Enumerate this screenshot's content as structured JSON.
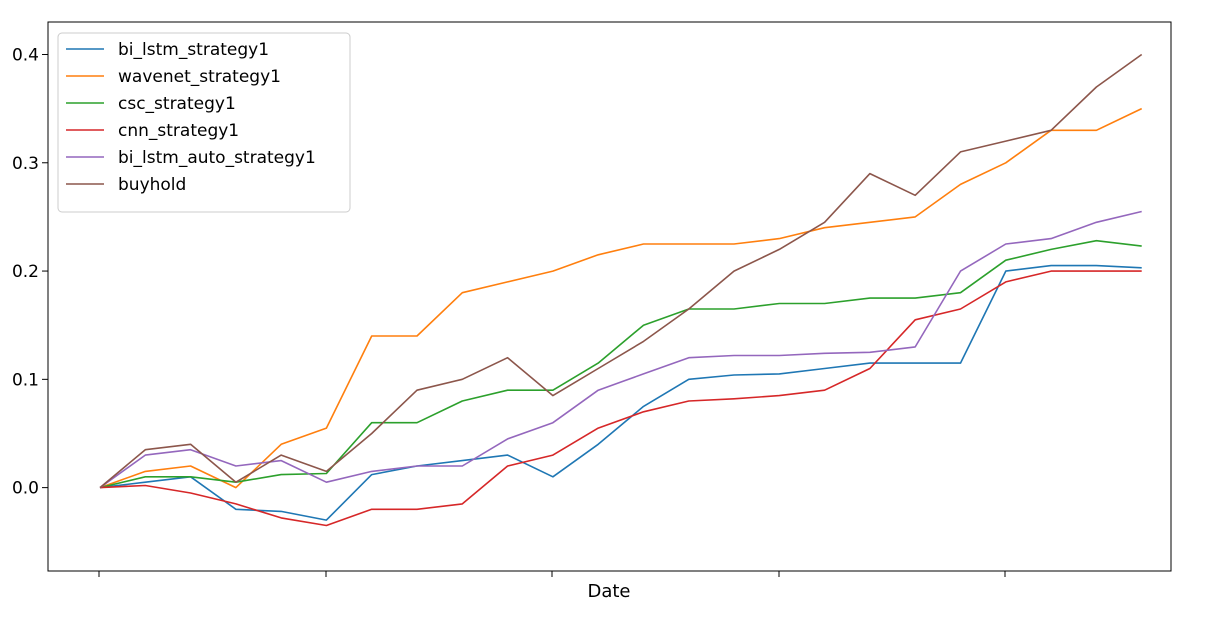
{
  "chart_data": {
    "type": "line",
    "title": "",
    "xlabel": "Date",
    "ylabel": "",
    "x_tick_labels": [
      "",
      "",
      "",
      "",
      ""
    ],
    "x": [
      0,
      20,
      40,
      60,
      80,
      100,
      120,
      140,
      160,
      180,
      200,
      220,
      240,
      260,
      280,
      300,
      320,
      340,
      360,
      380,
      400,
      420,
      440,
      460
    ],
    "xlim": [
      -22.96,
      472.96
    ],
    "ylim": [
      -0.077,
      0.43
    ],
    "yticks": [
      0.0,
      0.1,
      0.2,
      0.3,
      0.4
    ],
    "ytick_labels": [
      "0.0",
      "0.1",
      "0.2",
      "0.3",
      "0.4"
    ],
    "grid": false,
    "legend_position": "top-left",
    "series": [
      {
        "name": "bi_lstm_strategy1",
        "color": "#1f77b4",
        "values": [
          0.0,
          0.005,
          0.01,
          -0.02,
          -0.022,
          -0.03,
          0.012,
          0.02,
          0.025,
          0.03,
          0.01,
          0.04,
          0.075,
          0.1,
          0.104,
          0.105,
          0.11,
          0.115,
          0.115,
          0.115,
          0.2,
          0.205,
          0.205,
          0.203
        ]
      },
      {
        "name": "wavenet_strategy1",
        "color": "#ff7f0e",
        "values": [
          0.0,
          0.015,
          0.02,
          0.0,
          0.04,
          0.055,
          0.14,
          0.14,
          0.18,
          0.19,
          0.2,
          0.215,
          0.225,
          0.225,
          0.225,
          0.23,
          0.24,
          0.245,
          0.25,
          0.28,
          0.3,
          0.33,
          0.33,
          0.35
        ]
      },
      {
        "name": "csc_strategy1",
        "color": "#2ca02c",
        "values": [
          0.0,
          0.01,
          0.01,
          0.005,
          0.012,
          0.013,
          0.06,
          0.06,
          0.08,
          0.09,
          0.09,
          0.115,
          0.15,
          0.165,
          0.165,
          0.17,
          0.17,
          0.175,
          0.175,
          0.18,
          0.21,
          0.22,
          0.228,
          0.223
        ]
      },
      {
        "name": "cnn_strategy1",
        "color": "#d62728",
        "values": [
          0.0,
          0.002,
          -0.005,
          -0.015,
          -0.028,
          -0.035,
          -0.02,
          -0.02,
          -0.015,
          0.02,
          0.03,
          0.055,
          0.07,
          0.08,
          0.082,
          0.085,
          0.09,
          0.11,
          0.155,
          0.165,
          0.19,
          0.2,
          0.2,
          0.2
        ]
      },
      {
        "name": "bi_lstm_auto_strategy1",
        "color": "#9467bd",
        "values": [
          0.0,
          0.03,
          0.035,
          0.02,
          0.025,
          0.005,
          0.015,
          0.02,
          0.02,
          0.045,
          0.06,
          0.09,
          0.105,
          0.12,
          0.122,
          0.122,
          0.124,
          0.125,
          0.13,
          0.2,
          0.225,
          0.23,
          0.245,
          0.255
        ]
      },
      {
        "name": "buyhold",
        "color": "#8c564b",
        "values": [
          0.0,
          0.035,
          0.04,
          0.005,
          0.03,
          0.015,
          0.05,
          0.09,
          0.1,
          0.12,
          0.085,
          0.11,
          0.135,
          0.165,
          0.2,
          0.22,
          0.245,
          0.29,
          0.27,
          0.31,
          0.32,
          0.33,
          0.37,
          0.4
        ]
      }
    ]
  }
}
